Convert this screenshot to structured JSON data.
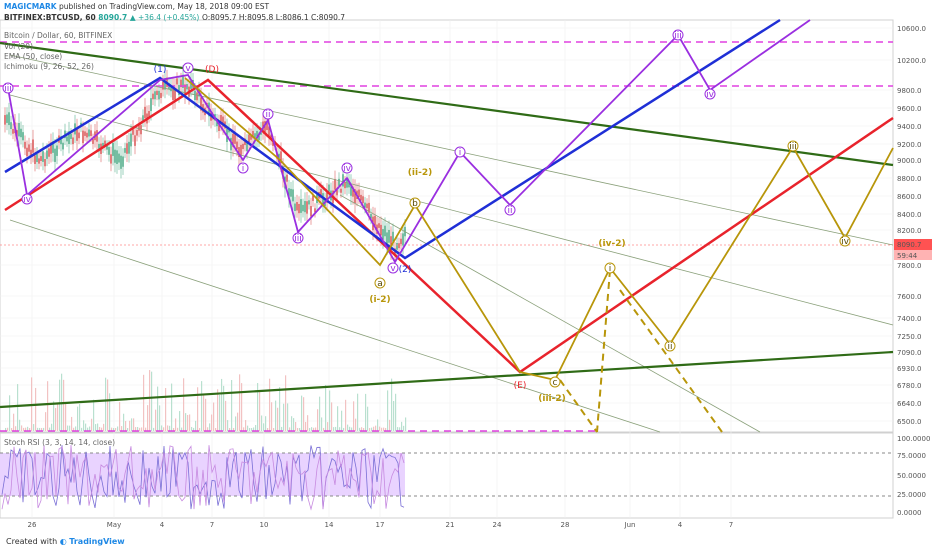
{
  "header": {
    "author": "MAGICMARK",
    "published": "published on TradingView.com, May 18, 2018 09:00 EST",
    "symbol_line": "BITFINEX:BTCUSD, 60",
    "symbol_close": "8090.7",
    "change": "▲ +36.4 (+0.45%)",
    "ohlc": "O:8095.7  H:8095.8  L:8086.1  C:8090.7",
    "pair": "Bitcoin / Dollar, 60, BITFINEX",
    "indicators": [
      "Vol (20)",
      "EMA (50, close)",
      "Ichimoku (9, 26, 52, 26)"
    ],
    "stoch_label": "Stoch RSI (3, 3, 14, 14, close)"
  },
  "footer": {
    "created": "Created with",
    "brand": "TradingView"
  },
  "chart_data": {
    "type": "line",
    "y_ticks": [
      "10600.0",
      "10200.0",
      "9800.0",
      "9600.0",
      "9400.0",
      "9200.0",
      "9000.0",
      "8800.0",
      "8600.0",
      "8400.0",
      "8200.0",
      "7800.0",
      "7600.0",
      "7400.0",
      "7250.0",
      "7090.0",
      "6930.0",
      "6780.0",
      "6640.0",
      "6500.0"
    ],
    "x_ticks": [
      "26",
      "May",
      "4",
      "7",
      "10",
      "14",
      "17",
      "21",
      "24",
      "28",
      "Jun",
      "4",
      "7"
    ],
    "price_label": "8090.7",
    "price_label2": "59:44",
    "stoch_ticks": [
      "100.0000",
      "75.0000",
      "50.0000",
      "25.0000",
      "0.0000"
    ],
    "wave_labels": {
      "purple": [
        "iii",
        "iv",
        "v",
        "i",
        "iii",
        "iv",
        "v",
        "i",
        "ii",
        "iii",
        "iv",
        "ii"
      ],
      "navy": [
        "(1)",
        "(2)"
      ],
      "red": [
        "(D)",
        "(E)"
      ],
      "gold": [
        "(ii-2)",
        "(i-2)",
        "a",
        "b",
        "c",
        "(iii-2)",
        "(iv-2)",
        "i",
        "ii",
        "iii",
        "iv"
      ]
    },
    "colors": {
      "blue": "#1f2fd6",
      "red": "#e8232c",
      "green": "#2f6b16",
      "purple": "#9a2fe0",
      "gold": "#b8960a",
      "magenta": "#e040e0"
    }
  }
}
